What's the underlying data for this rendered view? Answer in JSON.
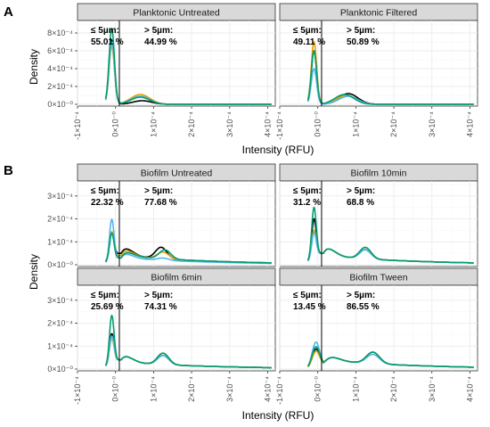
{
  "figure": {
    "panel_letters": [
      "A",
      "B"
    ],
    "ylabel": "Density",
    "xlabel": "Intensity (RFU)",
    "x_tick_labels": [
      "-1×10⁻⁴",
      "0×10⁻⁰",
      "1×10⁻⁴",
      "2×10⁻⁴",
      "3×10⁻⁴",
      "4×10⁻⁴"
    ],
    "y_tick_labels_A": [
      "0×10⁻⁰",
      "2×10⁻⁴",
      "4×10⁻⁴",
      "6×10⁻⁴",
      "8×10⁻⁴"
    ],
    "y_tick_labels_B": [
      "0×10⁻⁰",
      "1×10⁻⁴",
      "2×10⁻⁴",
      "3×10⁻⁴"
    ],
    "threshold_label": "≤ 5µm:",
    "above_label": "> 5µm:"
  },
  "chart_data": [
    {
      "type": "line",
      "panel": "A",
      "title": "Planktonic Untreated",
      "xlim": [
        -10000,
        42000
      ],
      "ylim": [
        0,
        0.0009
      ],
      "threshold_x": 1000,
      "below_pct": "55.01 %",
      "above_pct": "44.99 %",
      "colors": [
        "#000000",
        "#e69f00",
        "#56b4e9",
        "#009e73"
      ],
      "series": [
        {
          "color": "#000000",
          "peaks": [
            [
              -1000,
              700,
              0.00072
            ],
            [
              7000,
              2500,
              4e-05
            ]
          ]
        },
        {
          "color": "#e69f00",
          "peaks": [
            [
              -1000,
              700,
              0.00065
            ],
            [
              6500,
              2500,
              0.00011
            ]
          ]
        },
        {
          "color": "#56b4e9",
          "peaks": [
            [
              -1000,
              700,
              0.0007
            ],
            [
              6500,
              2500,
              9e-05
            ]
          ]
        },
        {
          "color": "#009e73",
          "peaks": [
            [
              -1000,
              700,
              0.00085
            ],
            [
              6500,
              2500,
              8e-05
            ]
          ]
        }
      ]
    },
    {
      "type": "line",
      "panel": "A",
      "title": "Planktonic Filtered",
      "xlim": [
        -10000,
        42000
      ],
      "ylim": [
        0,
        0.0009
      ],
      "threshold_x": 1000,
      "below_pct": "49.11 %",
      "above_pct": "50.89 %",
      "colors": [
        "#000000",
        "#e69f00",
        "#56b4e9",
        "#009e73"
      ],
      "series": [
        {
          "color": "#000000",
          "peaks": [
            [
              -1000,
              700,
              0.0006
            ],
            [
              8000,
              2500,
              0.00012
            ]
          ]
        },
        {
          "color": "#e69f00",
          "peaks": [
            [
              -1000,
              700,
              0.0007
            ],
            [
              7500,
              2500,
              0.0001
            ]
          ]
        },
        {
          "color": "#56b4e9",
          "peaks": [
            [
              -1000,
              700,
              0.0004
            ],
            [
              8000,
              2500,
              9e-05
            ]
          ]
        },
        {
          "color": "#009e73",
          "peaks": [
            [
              -1000,
              700,
              0.0006
            ],
            [
              7000,
              2500,
              0.00011
            ]
          ]
        }
      ]
    },
    {
      "type": "line",
      "panel": "B",
      "title": "Biofilm Untreated",
      "xlim": [
        -10000,
        42000
      ],
      "ylim": [
        0,
        0.00035
      ],
      "threshold_x": 1000,
      "below_pct": "22.32 %",
      "above_pct": "77.68 %",
      "colors": [
        "#000000",
        "#e69f00",
        "#56b4e9",
        "#009e73"
      ],
      "series": [
        {
          "color": "#000000",
          "peaks": [
            [
              -1000,
              600,
              0.00011
            ],
            [
              1500,
              2500,
              5e-05
            ],
            [
              12000,
              1500,
              5e-05
            ]
          ],
          "tail": [
            4e-05,
            25000
          ]
        },
        {
          "color": "#e69f00",
          "peaks": [
            [
              -1000,
              600,
              0.00012
            ],
            [
              1500,
              2500,
              4e-05
            ],
            [
              12500,
              1500,
              3e-05
            ]
          ],
          "tail": [
            4e-05,
            25000
          ]
        },
        {
          "color": "#56b4e9",
          "peaks": [
            [
              -1000,
              600,
              0.00018
            ],
            [
              1500,
              2500,
              3e-05
            ],
            [
              12500,
              1500,
              1e-05
            ]
          ],
          "tail": [
            3e-05,
            25000
          ]
        },
        {
          "color": "#009e73",
          "peaks": [
            [
              -1000,
              600,
              0.00012
            ],
            [
              1500,
              2500,
              3e-05
            ],
            [
              13000,
              1500,
              4e-05
            ]
          ],
          "tail": [
            4e-05,
            25000
          ]
        }
      ]
    },
    {
      "type": "line",
      "panel": "B",
      "title": "Biofilm 10min",
      "xlim": [
        -10000,
        42000
      ],
      "ylim": [
        0,
        0.00035
      ],
      "threshold_x": 1000,
      "below_pct": "31.2 %",
      "above_pct": "68.8 %",
      "colors": [
        "#000000",
        "#e69f00",
        "#56b4e9",
        "#009e73"
      ],
      "series": [
        {
          "color": "#000000",
          "peaks": [
            [
              -1000,
              600,
              0.00017
            ],
            [
              1500,
              2500,
              5e-05
            ],
            [
              12500,
              1500,
              4e-05
            ]
          ],
          "tail": [
            4e-05,
            25000
          ]
        },
        {
          "color": "#e69f00",
          "peaks": [
            [
              -1000,
              600,
              0.00012
            ],
            [
              1500,
              2500,
              5e-05
            ],
            [
              12500,
              1500,
              5e-05
            ]
          ],
          "tail": [
            4e-05,
            25000
          ]
        },
        {
          "color": "#56b4e9",
          "peaks": [
            [
              -1000,
              600,
              0.00011
            ],
            [
              1500,
              2500,
              5e-05
            ],
            [
              12500,
              1500,
              4e-05
            ]
          ],
          "tail": [
            4e-05,
            25000
          ]
        },
        {
          "color": "#009e73",
          "peaks": [
            [
              -1000,
              600,
              0.00022
            ],
            [
              1500,
              2500,
              5e-05
            ],
            [
              12500,
              1500,
              5e-05
            ]
          ],
          "tail": [
            4e-05,
            25000
          ]
        }
      ]
    },
    {
      "type": "line",
      "panel": "B",
      "title": "Biofilm 6min",
      "xlim": [
        -10000,
        42000
      ],
      "ylim": [
        0,
        0.00035
      ],
      "threshold_x": 1000,
      "below_pct": "25.69 %",
      "above_pct": "74.31 %",
      "colors": [
        "#000000",
        "#e69f00",
        "#56b4e9",
        "#009e73"
      ],
      "series": [
        {
          "color": "#000000",
          "peaks": [
            [
              -1000,
              600,
              0.00013
            ],
            [
              1500,
              2500,
              4e-05
            ],
            [
              12500,
              1500,
              4e-05
            ]
          ],
          "tail": [
            3e-05,
            25000
          ]
        },
        {
          "color": "#e69f00",
          "peaks": [
            [
              -1000,
              600,
              0.00011
            ],
            [
              1500,
              2500,
              4e-05
            ],
            [
              12500,
              1500,
              5e-05
            ]
          ],
          "tail": [
            3e-05,
            25000
          ]
        },
        {
          "color": "#56b4e9",
          "peaks": [
            [
              -1000,
              600,
              0.00012
            ],
            [
              1500,
              2500,
              4e-05
            ],
            [
              12500,
              1500,
              4e-05
            ]
          ],
          "tail": [
            3e-05,
            25000
          ]
        },
        {
          "color": "#009e73",
          "peaks": [
            [
              -1000,
              600,
              0.00021
            ],
            [
              1500,
              2500,
              4e-05
            ],
            [
              12500,
              1500,
              5e-05
            ]
          ],
          "tail": [
            3e-05,
            25000
          ]
        }
      ]
    },
    {
      "type": "line",
      "panel": "B",
      "title": "Biofilm Tween",
      "xlim": [
        -10000,
        42000
      ],
      "ylim": [
        0,
        0.00035
      ],
      "threshold_x": 1000,
      "below_pct": "13.45 %",
      "above_pct": "86.55 %",
      "colors": [
        "#000000",
        "#e69f00",
        "#56b4e9",
        "#009e73"
      ],
      "series": [
        {
          "color": "#000000",
          "peaks": [
            [
              -500,
              1000,
              8e-05
            ],
            [
              3000,
              2500,
              2e-05
            ],
            [
              14500,
              1700,
              5e-05
            ]
          ],
          "tail": [
            4e-05,
            25000
          ]
        },
        {
          "color": "#e69f00",
          "peaks": [
            [
              -500,
              1000,
              7e-05
            ],
            [
              3000,
              2500,
              2e-05
            ],
            [
              14500,
              1700,
              5e-05
            ]
          ],
          "tail": [
            4e-05,
            25000
          ]
        },
        {
          "color": "#56b4e9",
          "peaks": [
            [
              -500,
              1000,
              0.00011
            ],
            [
              3000,
              2500,
              2e-05
            ],
            [
              14500,
              1700,
              4e-05
            ]
          ],
          "tail": [
            4e-05,
            25000
          ]
        },
        {
          "color": "#009e73",
          "peaks": [
            [
              -500,
              1000,
              9e-05
            ],
            [
              3000,
              2500,
              2e-05
            ],
            [
              14500,
              1700,
              5e-05
            ]
          ],
          "tail": [
            4e-05,
            25000
          ]
        }
      ]
    }
  ]
}
